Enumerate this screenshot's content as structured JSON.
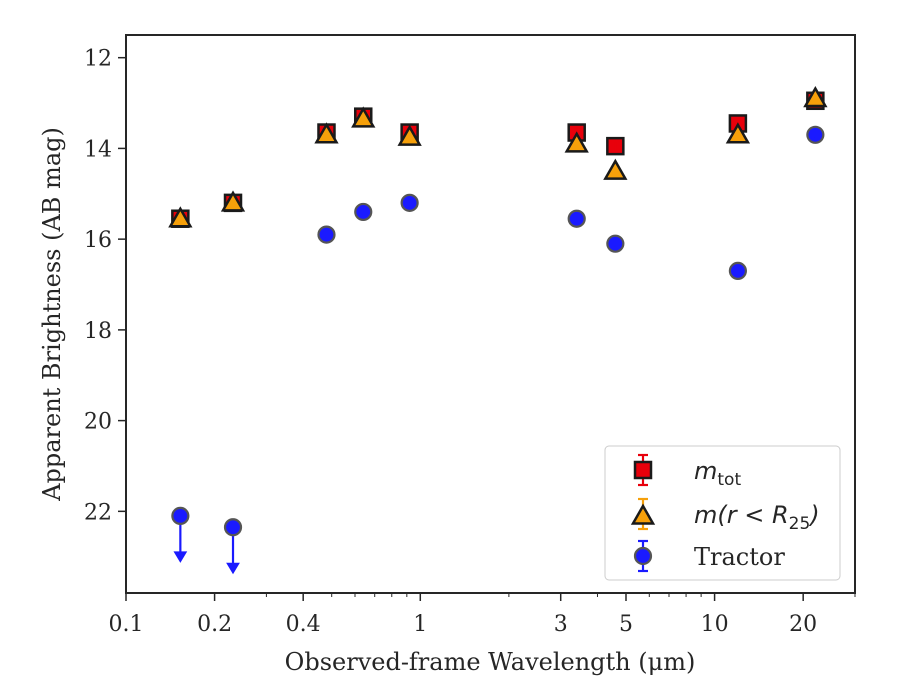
{
  "chart_data": {
    "type": "scatter",
    "title": "",
    "xlabel": "Observed-frame Wavelength (μm)",
    "ylabel": "Apparent Brightness (AB mag)",
    "xscale": "log",
    "xlim": [
      0.1,
      30
    ],
    "ylim": [
      23.8,
      11.5
    ],
    "y_inverted": true,
    "x_ticks": [
      0.1,
      0.2,
      0.4,
      1,
      3,
      5,
      10,
      20
    ],
    "x_tick_labels": [
      "0.1",
      "0.2",
      "0.4",
      "1",
      "3",
      "5",
      "10",
      "20"
    ],
    "y_ticks": [
      12,
      14,
      16,
      18,
      20,
      22
    ],
    "y_tick_labels": [
      "12",
      "14",
      "16",
      "18",
      "20",
      "22"
    ],
    "grid": false,
    "legend_position": "bottom-right",
    "series": [
      {
        "name": "m_tot",
        "label_main": "m",
        "label_sub": "tot",
        "marker": "square",
        "color": "#e8000b",
        "x": [
          0.153,
          0.231,
          0.48,
          0.64,
          0.92,
          3.4,
          4.6,
          12.0,
          22.0
        ],
        "y": [
          15.55,
          15.2,
          13.65,
          13.3,
          13.65,
          13.65,
          13.95,
          13.45,
          12.95
        ]
      },
      {
        "name": "m(r < R_25)",
        "label_main": "m(r < R",
        "label_sub": "25",
        "label_end": ")",
        "marker": "triangle",
        "color": "#f6a00a",
        "x": [
          0.153,
          0.231,
          0.48,
          0.64,
          0.92,
          3.4,
          4.6,
          12.0,
          22.0
        ],
        "y": [
          15.55,
          15.2,
          13.7,
          13.35,
          13.75,
          13.9,
          14.5,
          13.7,
          12.9
        ]
      },
      {
        "name": "Tractor",
        "label_main": "Tractor",
        "marker": "circle",
        "color": "#1a1aff",
        "x": [
          0.48,
          0.64,
          0.92,
          3.4,
          4.6,
          12.0,
          22.0
        ],
        "y": [
          15.9,
          15.4,
          15.2,
          15.55,
          16.1,
          16.7,
          13.7
        ]
      },
      {
        "name": "Tractor upper limits",
        "marker": "circle-arrow",
        "color": "#1a1aff",
        "x": [
          0.153,
          0.231
        ],
        "y": [
          22.1,
          22.35
        ]
      }
    ]
  }
}
